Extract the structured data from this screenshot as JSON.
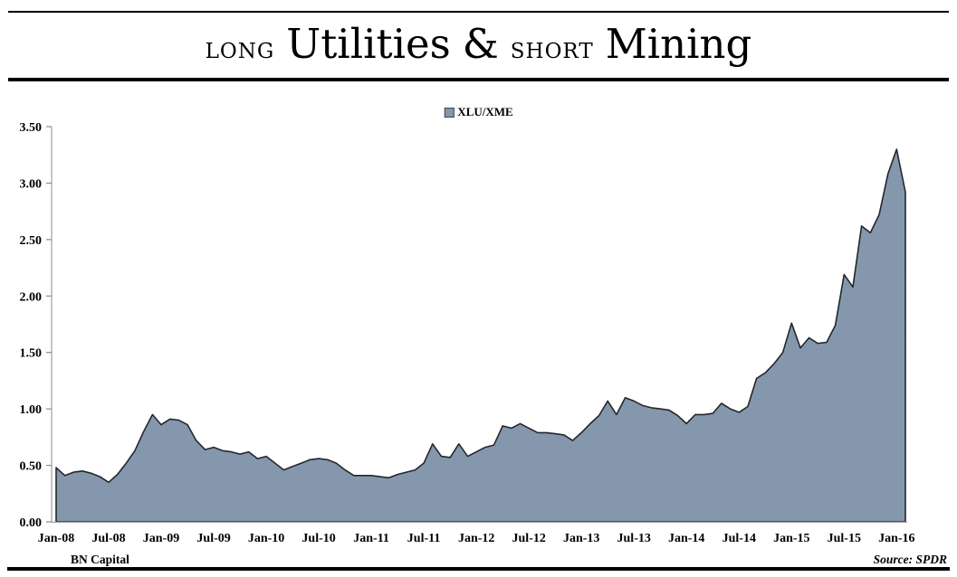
{
  "title": {
    "long": "LONG",
    "utilities": "Utilities",
    "amp": "&",
    "short": "SHORT",
    "mining": "Mining"
  },
  "legend": {
    "label": "XLU/XME"
  },
  "footer": {
    "left": "BN Capital",
    "right": "Source: SPDR"
  },
  "colors": {
    "background": "#FFFFFF",
    "series_fill": "#8497AD",
    "series_stroke": "#24272C",
    "axis_line": "#A6A6A6",
    "tick": "#8C8C8C",
    "text": "#000000",
    "rule": "#000000"
  },
  "chart_data": {
    "type": "area",
    "title": "LONG Utilities & SHORT Mining",
    "series_name": "XLU/XME",
    "legend_position": "top-center",
    "grid": false,
    "ylim": [
      0,
      3.5
    ],
    "y_tick_labels": [
      "0.00",
      "0.50",
      "1.00",
      "1.50",
      "2.00",
      "2.50",
      "3.00",
      "3.50"
    ],
    "x_tick_labels": [
      "Jan-08",
      "Jul-08",
      "Jan-09",
      "Jul-09",
      "Jan-10",
      "Jul-10",
      "Jan-11",
      "Jul-11",
      "Jan-12",
      "Jul-12",
      "Jan-13",
      "Jul-13",
      "Jan-14",
      "Jul-14",
      "Jan-15",
      "Jul-15",
      "Jan-16"
    ],
    "x_frequency": "monthly",
    "x": [
      "Jan-08",
      "Feb-08",
      "Mar-08",
      "Apr-08",
      "May-08",
      "Jun-08",
      "Jul-08",
      "Aug-08",
      "Sep-08",
      "Oct-08",
      "Nov-08",
      "Dec-08",
      "Jan-09",
      "Feb-09",
      "Mar-09",
      "Apr-09",
      "May-09",
      "Jun-09",
      "Jul-09",
      "Aug-09",
      "Sep-09",
      "Oct-09",
      "Nov-09",
      "Dec-09",
      "Jan-10",
      "Feb-10",
      "Mar-10",
      "Apr-10",
      "May-10",
      "Jun-10",
      "Jul-10",
      "Aug-10",
      "Sep-10",
      "Oct-10",
      "Nov-10",
      "Dec-10",
      "Jan-11",
      "Feb-11",
      "Mar-11",
      "Apr-11",
      "May-11",
      "Jun-11",
      "Jul-11",
      "Aug-11",
      "Sep-11",
      "Oct-11",
      "Nov-11",
      "Dec-11",
      "Jan-12",
      "Feb-12",
      "Mar-12",
      "Apr-12",
      "May-12",
      "Jun-12",
      "Jul-12",
      "Aug-12",
      "Sep-12",
      "Oct-12",
      "Nov-12",
      "Dec-12",
      "Jan-13",
      "Feb-13",
      "Mar-13",
      "Apr-13",
      "May-13",
      "Jun-13",
      "Jul-13",
      "Aug-13",
      "Sep-13",
      "Oct-13",
      "Nov-13",
      "Dec-13",
      "Jan-14",
      "Feb-14",
      "Mar-14",
      "Apr-14",
      "May-14",
      "Jun-14",
      "Jul-14",
      "Aug-14",
      "Sep-14",
      "Oct-14",
      "Nov-14",
      "Dec-14",
      "Jan-15",
      "Feb-15",
      "Mar-15",
      "Apr-15",
      "May-15",
      "Jun-15",
      "Jul-15",
      "Aug-15",
      "Sep-15",
      "Oct-15",
      "Nov-15",
      "Dec-15",
      "Jan-16",
      "Feb-16"
    ],
    "values": [
      0.48,
      0.41,
      0.44,
      0.45,
      0.43,
      0.4,
      0.35,
      0.42,
      0.52,
      0.63,
      0.8,
      0.95,
      0.86,
      0.91,
      0.9,
      0.86,
      0.72,
      0.64,
      0.66,
      0.63,
      0.62,
      0.6,
      0.62,
      0.56,
      0.58,
      0.52,
      0.46,
      0.49,
      0.52,
      0.55,
      0.56,
      0.55,
      0.52,
      0.46,
      0.41,
      0.41,
      0.41,
      0.4,
      0.39,
      0.42,
      0.44,
      0.46,
      0.52,
      0.69,
      0.58,
      0.57,
      0.69,
      0.58,
      0.62,
      0.66,
      0.68,
      0.85,
      0.83,
      0.87,
      0.83,
      0.79,
      0.79,
      0.78,
      0.77,
      0.72,
      0.79,
      0.87,
      0.94,
      1.07,
      0.95,
      1.1,
      1.07,
      1.03,
      1.01,
      1.0,
      0.99,
      0.94,
      0.87,
      0.95,
      0.95,
      0.96,
      1.05,
      1.0,
      0.97,
      1.02,
      1.27,
      1.32,
      1.4,
      1.5,
      1.76,
      1.54,
      1.63,
      1.58,
      1.59,
      1.74,
      2.19,
      2.08,
      2.62,
      2.56,
      2.72,
      3.08,
      3.3,
      2.92
    ]
  }
}
